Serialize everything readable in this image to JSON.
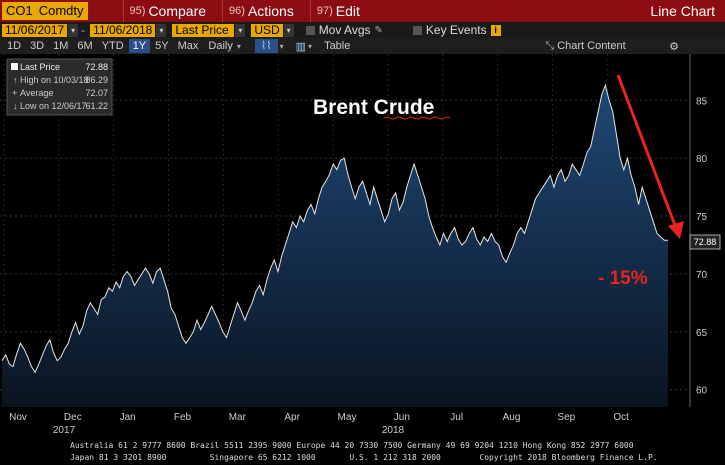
{
  "toolbar": {
    "ticker": "CO1",
    "ticker_suffix": "Comdty",
    "menus": [
      {
        "num": "95)",
        "label": "Compare"
      },
      {
        "num": "96)",
        "label": "Actions"
      },
      {
        "num": "97)",
        "label": "Edit"
      }
    ],
    "view_title": "Line Chart"
  },
  "controls": {
    "start_date": "11/06/2017",
    "end_date": "11/06/2018",
    "field": "Last Price",
    "currency": "USD",
    "mov_avgs": "Mov Avgs",
    "key_events": "Key Events"
  },
  "ranges": {
    "items": [
      "1D",
      "3D",
      "1M",
      "6M",
      "YTD",
      "1Y",
      "5Y",
      "Max"
    ],
    "selected": "1Y",
    "frequency": "Daily",
    "table": "Table",
    "chart_content": "Chart Content"
  },
  "legend": {
    "last_price_label": "Last Price",
    "last_price": "72.88",
    "high_label": "High on 10/03/18",
    "high": "86.29",
    "average_label": "Average",
    "average": "72.07",
    "low_label": "Low on 12/06/17",
    "low": "61.22"
  },
  "annotations": {
    "title": "Brent Crude",
    "change": "- 15%",
    "last_tag": "72.88"
  },
  "chart_data": {
    "type": "area",
    "title": "Brent Crude",
    "ylim": [
      58.5,
      89
    ],
    "yticks": [
      60,
      65,
      70,
      75,
      80,
      85
    ],
    "xlabels": [
      "Nov",
      "Dec",
      "Jan",
      "Feb",
      "Mar",
      "Apr",
      "May",
      "Jun",
      "Jul",
      "Aug",
      "Sep",
      "Oct"
    ],
    "year_labels": [
      {
        "label": "2017",
        "under": "Dec"
      },
      {
        "label": "2018",
        "under": "Jun"
      }
    ],
    "grid": true,
    "values": [
      62.5,
      63.0,
      62.2,
      62.0,
      63.1,
      64.0,
      63.5,
      62.8,
      62.0,
      61.5,
      62.2,
      63.0,
      63.8,
      64.3,
      63.2,
      62.5,
      62.8,
      63.5,
      64.0,
      65.0,
      65.8,
      64.8,
      65.5,
      66.8,
      67.5,
      67.0,
      66.5,
      67.8,
      68.0,
      68.8,
      68.5,
      69.3,
      68.8,
      69.8,
      70.2,
      69.8,
      69.0,
      69.5,
      70.0,
      70.5,
      70.0,
      69.2,
      70.2,
      70.5,
      69.5,
      68.5,
      67.0,
      66.5,
      65.5,
      64.5,
      64.0,
      64.5,
      65.0,
      66.0,
      65.2,
      65.8,
      66.5,
      67.2,
      66.5,
      65.8,
      65.0,
      64.5,
      65.5,
      66.5,
      67.5,
      66.8,
      66.0,
      66.8,
      67.5,
      68.5,
      69.0,
      68.2,
      69.5,
      70.5,
      71.2,
      70.2,
      71.5,
      72.5,
      73.5,
      74.5,
      74.0,
      75.0,
      74.5,
      75.5,
      76.0,
      75.2,
      76.5,
      77.5,
      78.0,
      78.6,
      79.5,
      79.0,
      79.8,
      80.0,
      78.6,
      77.5,
      76.5,
      77.5,
      78.0,
      77.0,
      76.0,
      77.5,
      76.5,
      75.5,
      74.5,
      75.2,
      76.5,
      77.0,
      75.5,
      76.2,
      77.5,
      78.5,
      79.5,
      78.5,
      77.5,
      76.5,
      75.0,
      74.0,
      73.2,
      72.5,
      73.5,
      72.8,
      73.5,
      74.0,
      73.0,
      72.5,
      72.8,
      73.5,
      74.0,
      73.0,
      72.5,
      73.2,
      72.8,
      73.5,
      72.8,
      72.5,
      71.5,
      71.0,
      71.8,
      72.5,
      73.5,
      74.0,
      73.5,
      74.5,
      75.5,
      76.5,
      77.0,
      77.5,
      78.0,
      78.5,
      77.5,
      78.5,
      79.0,
      78.0,
      78.5,
      79.5,
      79.0,
      78.5,
      79.5,
      80.5,
      81.0,
      82.5,
      84.0,
      85.5,
      86.3,
      85.0,
      84.0,
      82.0,
      80.0,
      79.0,
      80.0,
      78.5,
      77.5,
      76.0,
      77.5,
      76.5,
      75.5,
      74.5,
      73.5,
      73.2,
      72.9,
      72.9
    ],
    "last_value": 72.88
  },
  "footer": {
    "line1": "Australia 61 2 9777 8600 Brazil 5511 2395 9000 Europe 44 20 7330 7500 Germany 49 69 9204 1210 Hong Kong 852 2977 6000",
    "line2": "Japan 81 3 3201 8900         Singapore 65 6212 1000       U.S. 1 212 318 2000        Copyright 2018 Bloomberg Finance L.P."
  },
  "colors": {
    "header_red": "#8b0d12",
    "field_amber": "#e8a800",
    "area_top": "#1f4877",
    "area_bottom": "#0a1420",
    "annotation_red": "#e8241d"
  }
}
